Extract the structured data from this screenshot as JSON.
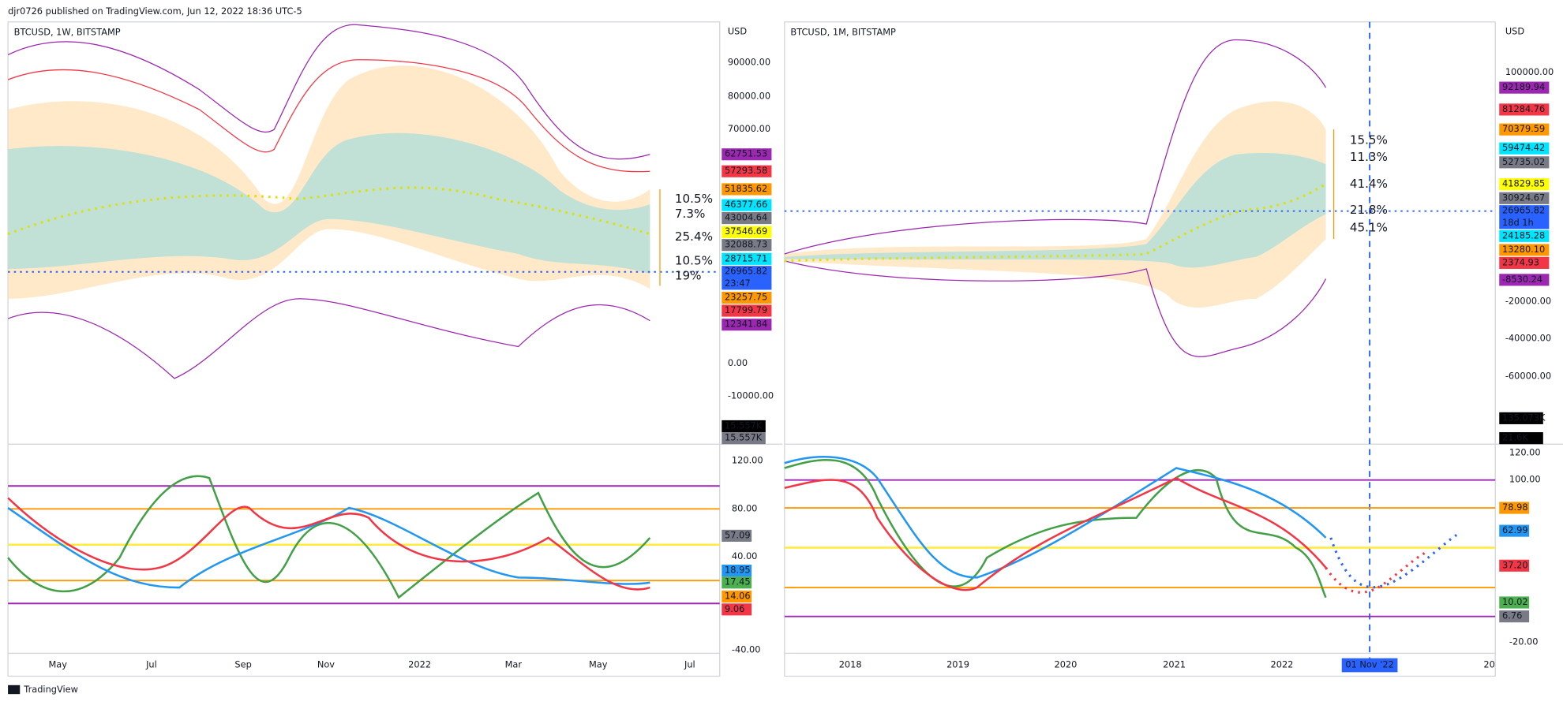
{
  "header": {
    "publisher": "djr0726 published on TradingView.com, Jun 12, 2022 18:36 UTC-5"
  },
  "footer": {
    "brand": "TradingView"
  },
  "panels": [
    {
      "symbol": "BTCUSD, 1W, BITSTAMP",
      "currency": "USD",
      "price_scale": [
        "90000.00",
        "80000.00",
        "70000.00",
        "0.00",
        "-10000.00"
      ],
      "price_badges": [
        {
          "text": "62751.53",
          "color": "#9c27b0"
        },
        {
          "text": "57293.58",
          "color": "#f23645"
        },
        {
          "text": "51835.62",
          "color": "#ff9800"
        },
        {
          "text": "46377.66",
          "color": "#00e5ff"
        },
        {
          "text": "43004.64",
          "color": "#787b86"
        },
        {
          "text": "37546.69",
          "color": "#ffff00"
        },
        {
          "text": "32088.73",
          "color": "#787b86"
        },
        {
          "text": "28715.71",
          "color": "#00e5ff"
        },
        {
          "text": "26965.82",
          "sub": "23:47",
          "color": "#2962ff"
        },
        {
          "text": "23257.75",
          "color": "#ff9800"
        },
        {
          "text": "17799.79",
          "color": "#f23645"
        },
        {
          "text": "12341.84",
          "color": "#9c27b0"
        }
      ],
      "volume_badges": [
        {
          "text": "15.557K",
          "color": "#000000"
        },
        {
          "text": "15.557K",
          "color": "#787b86"
        }
      ],
      "oscillator_scale": [
        "120.00",
        "80.00",
        "40.00",
        "-40.00"
      ],
      "oscillator_badges": [
        {
          "text": "57.09",
          "color": "#787b86"
        },
        {
          "text": "18.95",
          "color": "#2196f3"
        },
        {
          "text": "17.45",
          "color": "#4caf50"
        },
        {
          "text": "14.06",
          "color": "#ff9800"
        },
        {
          "text": "9.06",
          "color": "#f23645"
        }
      ],
      "band_percentages": [
        "10.5%",
        "7.3%",
        "25.4%",
        "10.5%",
        "19%"
      ],
      "time_axis": [
        "May",
        "Jul",
        "Sep",
        "Nov",
        "2022",
        "Mar",
        "May",
        "Jul"
      ]
    },
    {
      "symbol": "BTCUSD, 1M, BITSTAMP",
      "currency": "USD",
      "price_scale": [
        "100000.00",
        "-20000.00",
        "-40000.00",
        "-60000.00"
      ],
      "price_badges": [
        {
          "text": "92189.94",
          "color": "#9c27b0"
        },
        {
          "text": "81284.76",
          "color": "#f23645"
        },
        {
          "text": "70379.59",
          "color": "#ff9800"
        },
        {
          "text": "59474.42",
          "color": "#00e5ff"
        },
        {
          "text": "52735.02",
          "color": "#787b86"
        },
        {
          "text": "41829.85",
          "color": "#ffff00"
        },
        {
          "text": "30924.67",
          "color": "#787b86"
        },
        {
          "text": "26965.82",
          "sub": "18d 1h",
          "color": "#2962ff"
        },
        {
          "text": "24185.28",
          "color": "#00e5ff"
        },
        {
          "text": "13280.10",
          "color": "#ff9800"
        },
        {
          "text": "2374.93",
          "color": "#f23645"
        },
        {
          "text": "-8530.24",
          "color": "#9c27b0"
        }
      ],
      "volume_badges": [
        {
          "text": "135.073K",
          "color": "#000000"
        },
        {
          "text": "21.6K",
          "color": "#000000"
        }
      ],
      "oscillator_scale": [
        "120.00",
        "100.00",
        "-20.00"
      ],
      "oscillator_badges": [
        {
          "text": "78.98",
          "color": "#ff9800"
        },
        {
          "text": "62.99",
          "color": "#2196f3"
        },
        {
          "text": "37.20",
          "color": "#f23645"
        },
        {
          "text": "10.02",
          "color": "#4caf50"
        },
        {
          "text": "6.76",
          "color": "#787b86"
        }
      ],
      "band_percentages": [
        "15.5%",
        "11.3%",
        "41.4%",
        "21.8%",
        "45.1%"
      ],
      "time_axis": [
        "2018",
        "2019",
        "2020",
        "2021",
        "2022",
        "01 Nov '22",
        "20"
      ]
    }
  ]
}
